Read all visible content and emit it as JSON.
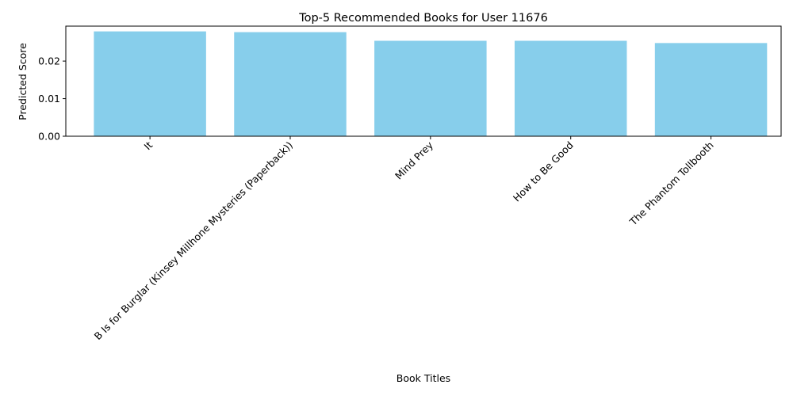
{
  "chart_data": {
    "type": "bar",
    "title": "Top-5 Recommended Books for User 11676",
    "xlabel": "Book Titles",
    "ylabel": "Predicted Score",
    "categories": [
      "It",
      "B Is for Burglar (Kinsey Millhone Mysteries (Paperback))",
      "Mind Prey",
      "How to Be Good",
      "The Phantom Tollbooth"
    ],
    "values": [
      0.0279,
      0.0277,
      0.0254,
      0.0254,
      0.0248
    ],
    "ylim": [
      0,
      0.0293
    ],
    "yticks": [
      0.0,
      0.01,
      0.02
    ],
    "ytick_labels": [
      "0.00",
      "0.01",
      "0.02"
    ],
    "grid": false,
    "bar_color": "#87ceeb"
  }
}
